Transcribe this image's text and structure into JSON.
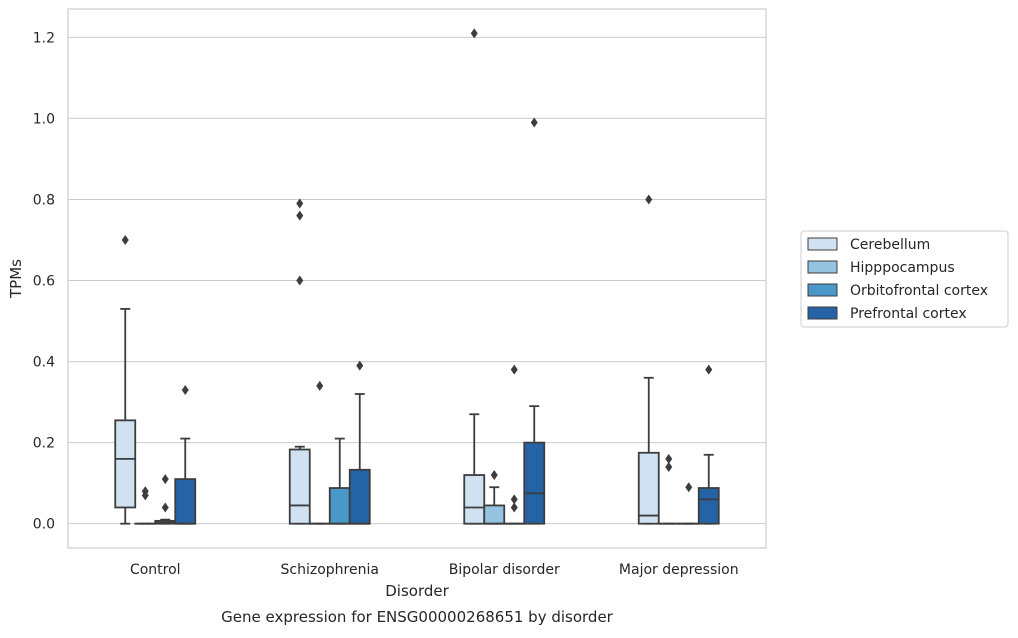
{
  "chart_data": {
    "type": "box",
    "xlabel": "Disorder",
    "ylabel": "TPMs",
    "caption": "Gene expression for ENSG00000268651 by disorder",
    "categories": [
      "Control",
      "Schizophrenia",
      "Bipolar disorder",
      "Major depression"
    ],
    "ylim": [
      -0.06,
      1.27
    ],
    "yticks": [
      0.0,
      0.2,
      0.4,
      0.6,
      0.8,
      1.0,
      1.2
    ],
    "ytick_labels": [
      "0.0",
      "0.2",
      "0.4",
      "0.6",
      "0.8",
      "1.0",
      "1.2"
    ],
    "grid": "horizontal",
    "legend_position": "right",
    "series": [
      {
        "name": "Cerebellum",
        "color": "#d0e1f2",
        "boxes": [
          {
            "min": 0.0,
            "q1": 0.04,
            "median": 0.16,
            "q3": 0.255,
            "max": 0.53,
            "outliers": [
              0.7
            ]
          },
          {
            "min": 0.0,
            "q1": 0.0,
            "median": 0.045,
            "q3": 0.183,
            "max": 0.19,
            "outliers": [
              0.79,
              0.76,
              0.6
            ]
          },
          {
            "min": 0.0,
            "q1": 0.0,
            "median": 0.04,
            "q3": 0.12,
            "max": 0.27,
            "outliers": [
              1.21
            ]
          },
          {
            "min": 0.0,
            "q1": 0.0,
            "median": 0.02,
            "q3": 0.175,
            "max": 0.36,
            "outliers": [
              0.8
            ]
          }
        ]
      },
      {
        "name": "Hipppocampus",
        "color": "#94c4df",
        "boxes": [
          {
            "min": 0.0,
            "q1": 0.0,
            "median": 0.0,
            "q3": 0.0,
            "max": 0.0,
            "outliers": [
              0.08,
              0.07
            ]
          },
          {
            "min": 0.0,
            "q1": 0.0,
            "median": 0.0,
            "q3": 0.0,
            "max": 0.0,
            "outliers": [
              0.34
            ]
          },
          {
            "min": 0.0,
            "q1": 0.0,
            "median": 0.0,
            "q3": 0.045,
            "max": 0.09,
            "outliers": [
              0.12
            ]
          },
          {
            "min": 0.0,
            "q1": 0.0,
            "median": 0.0,
            "q3": 0.0,
            "max": 0.0,
            "outliers": [
              0.16,
              0.14
            ]
          }
        ]
      },
      {
        "name": "Orbitofrontal cortex",
        "color": "#4a98c9",
        "boxes": [
          {
            "min": 0.0,
            "q1": 0.0,
            "median": 0.003,
            "q3": 0.007,
            "max": 0.01,
            "outliers": [
              0.11,
              0.04
            ]
          },
          {
            "min": 0.0,
            "q1": 0.0,
            "median": 0.0,
            "q3": 0.088,
            "max": 0.21,
            "outliers": []
          },
          {
            "min": 0.0,
            "q1": 0.0,
            "median": 0.0,
            "q3": 0.0,
            "max": 0.0,
            "outliers": [
              0.38,
              0.06,
              0.04
            ]
          },
          {
            "min": 0.0,
            "q1": 0.0,
            "median": 0.0,
            "q3": 0.0,
            "max": 0.0,
            "outliers": [
              0.09
            ]
          }
        ]
      },
      {
        "name": "Prefrontal cortex",
        "color": "#2464a6",
        "boxes": [
          {
            "min": 0.0,
            "q1": 0.0,
            "median": 0.0,
            "q3": 0.11,
            "max": 0.21,
            "outliers": [
              0.33
            ]
          },
          {
            "min": 0.0,
            "q1": 0.0,
            "median": 0.0,
            "q3": 0.133,
            "max": 0.32,
            "outliers": [
              0.39
            ]
          },
          {
            "min": 0.0,
            "q1": 0.0,
            "median": 0.075,
            "q3": 0.2,
            "max": 0.29,
            "outliers": [
              0.99
            ]
          },
          {
            "min": 0.0,
            "q1": 0.0,
            "median": 0.06,
            "q3": 0.088,
            "max": 0.17,
            "outliers": [
              0.38
            ]
          }
        ]
      }
    ]
  }
}
